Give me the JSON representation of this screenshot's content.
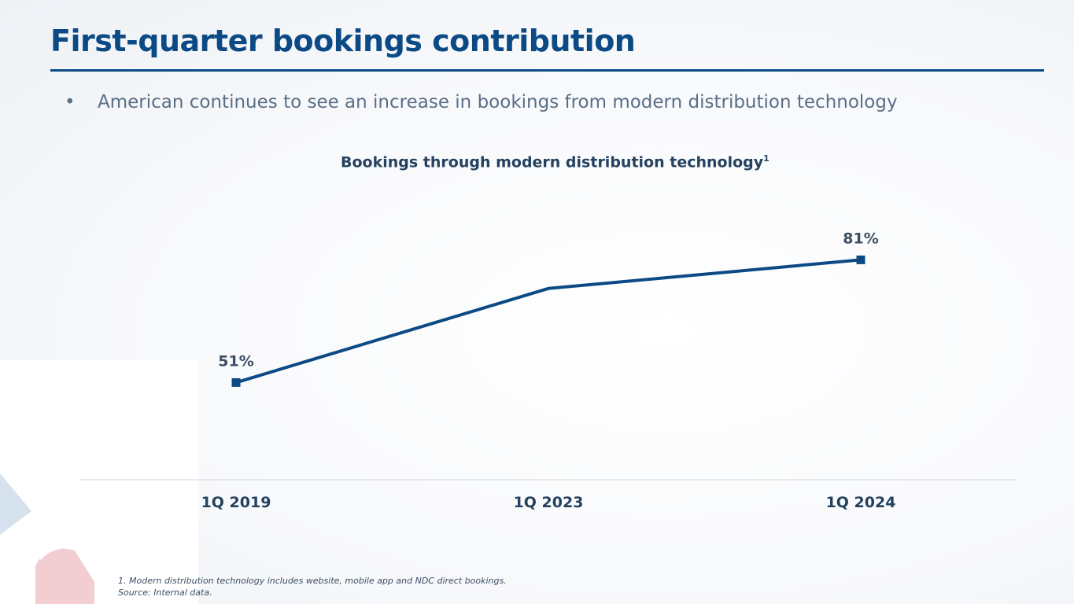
{
  "slide": {
    "title": "First-quarter bookings contribution",
    "bullet_symbol": "•",
    "bullet": "American continues to see an increase in bookings from modern distribution technology",
    "footnote_1": "1. Modern distribution technology includes website, mobile app and NDC direct bookings.",
    "footnote_2": "Source: Internal data."
  },
  "chart_data": {
    "type": "line",
    "title": "Bookings through modern distribution technology",
    "title_superscript": "1",
    "categories": [
      "1Q 2019",
      "1Q 2023",
      "1Q 2024"
    ],
    "series": [
      {
        "name": "Bookings through modern distribution technology",
        "values": [
          51,
          74,
          81
        ]
      }
    ],
    "data_labels": [
      "51%",
      "",
      "81%"
    ],
    "ylim": [
      0,
      100
    ],
    "xlabel": "",
    "ylabel": "",
    "grid": false
  },
  "colors": {
    "title": "#0b4a85",
    "line": "#0b4a85",
    "axis": "#dde3ea",
    "decor_red": "#d71f35",
    "decor_blue": "#7fa6c9"
  }
}
